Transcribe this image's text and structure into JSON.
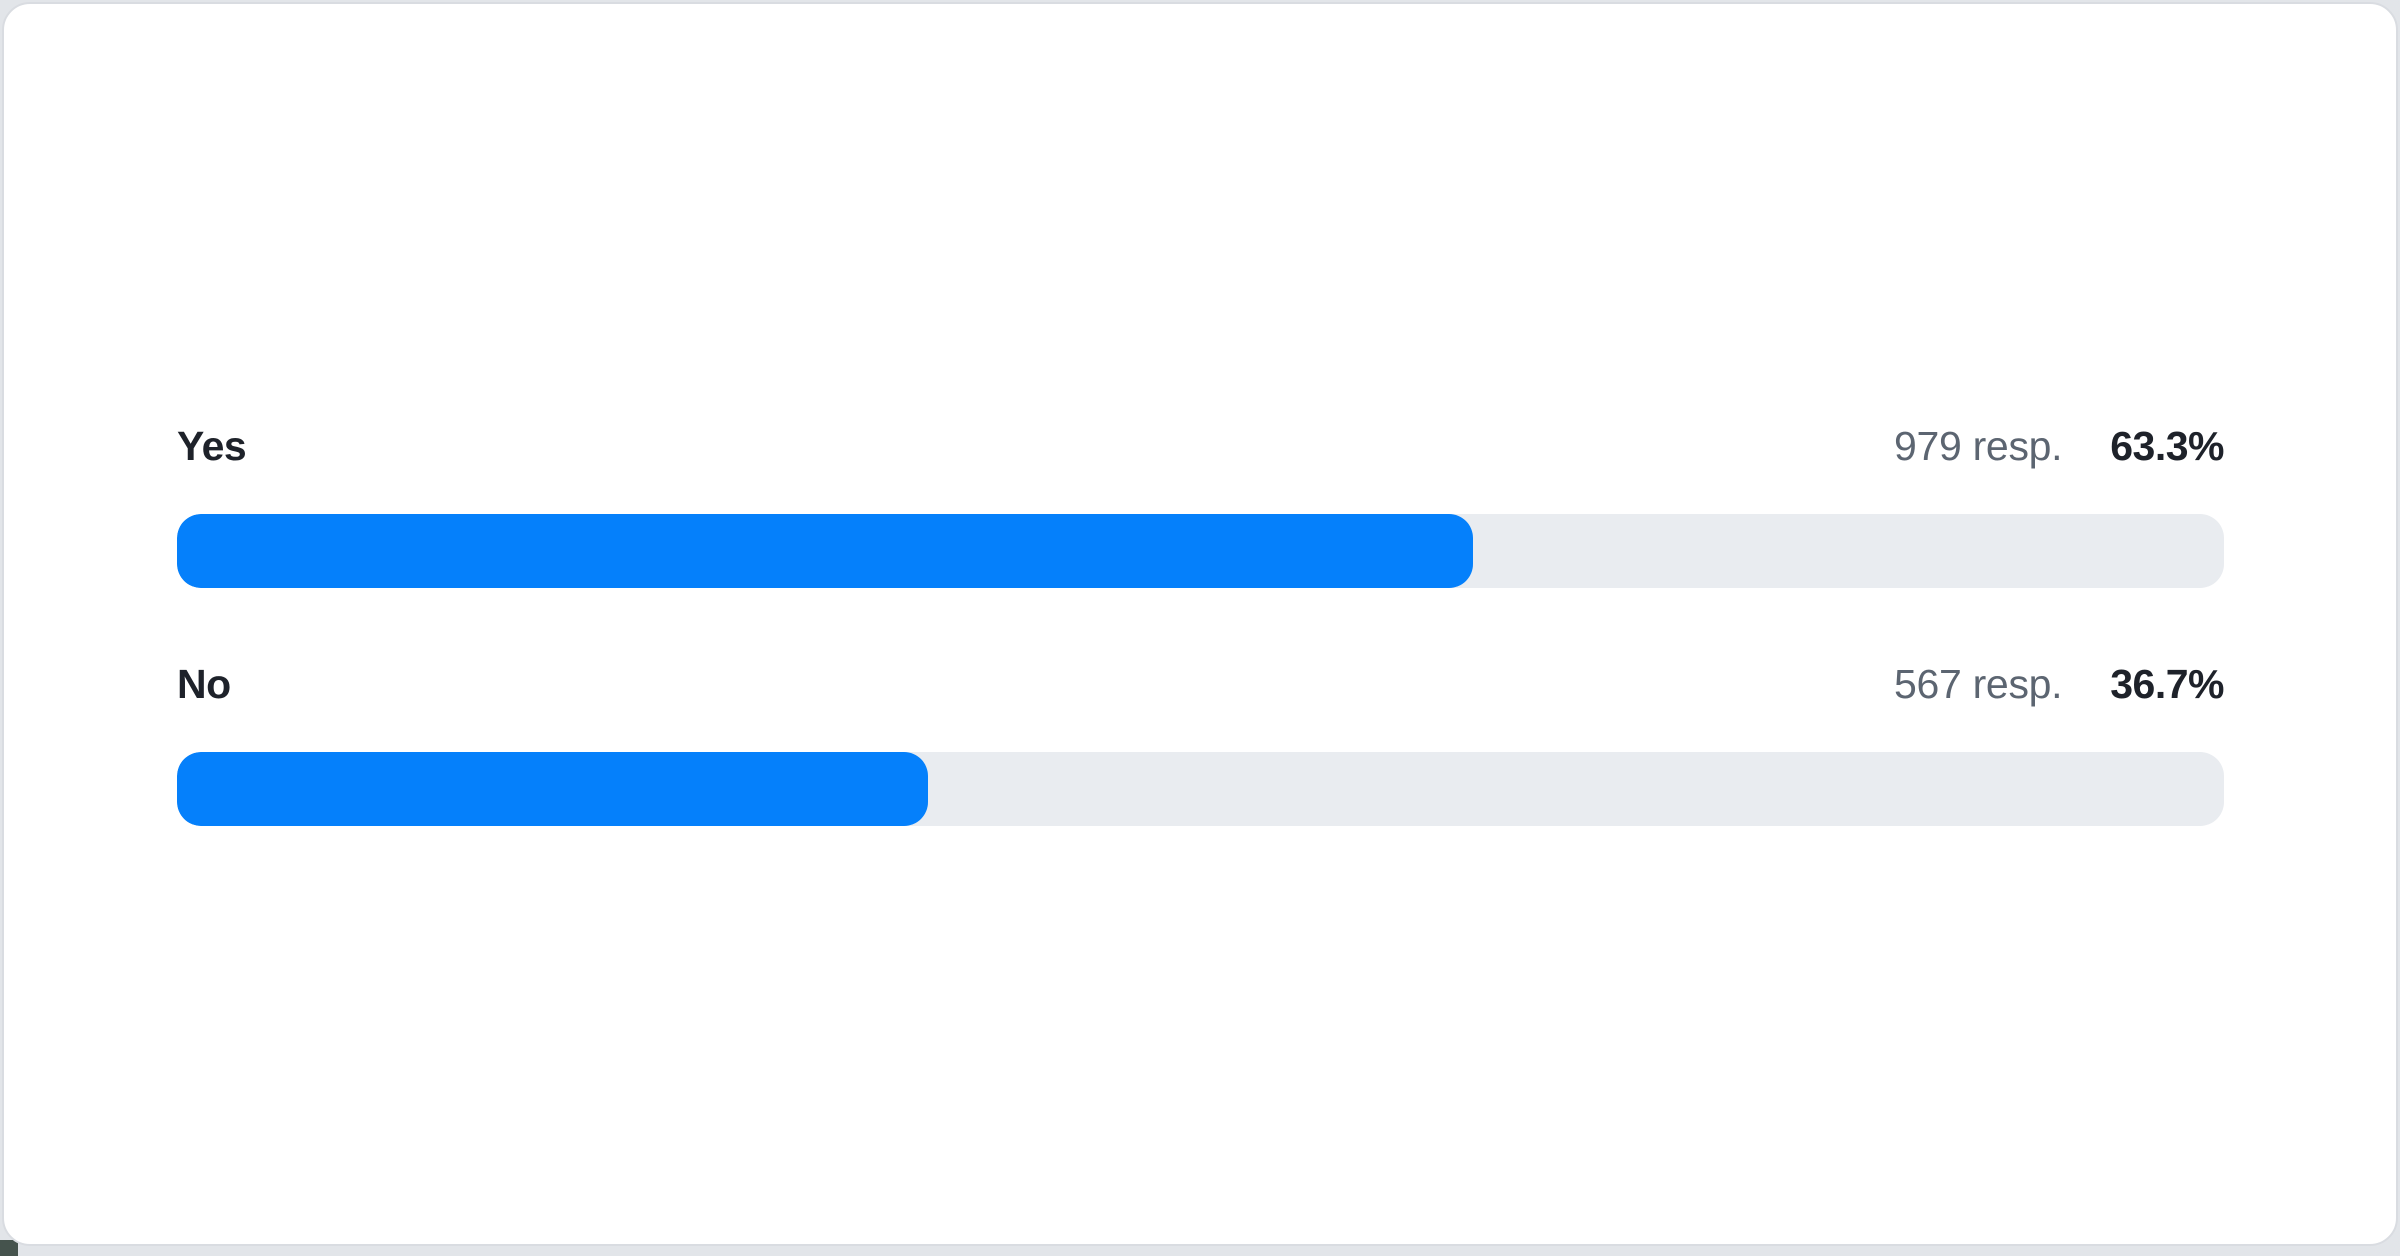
{
  "page": {
    "background_color": "#e2e5e9"
  },
  "card": {
    "background_color": "#ffffff",
    "border_color": "#d9dce1"
  },
  "colors": {
    "page_bg": "#e2e5e9",
    "card_bg": "#ffffff",
    "card_border": "#d9dce1",
    "bar_fill": "#0580fb",
    "bar_track": "#e9ecf0",
    "label_text": "#1e222a",
    "muted_text": "#5c6571",
    "corner_fragment": "#45534d"
  },
  "chart_data": {
    "type": "bar",
    "orientation": "horizontal",
    "title": "",
    "categories": [
      "Yes",
      "No"
    ],
    "series": [
      {
        "name": "responses",
        "values": [
          979,
          567
        ]
      },
      {
        "name": "percent",
        "values": [
          63.3,
          36.7
        ]
      }
    ],
    "count_labels": [
      "979 resp.",
      "567 resp."
    ],
    "value_labels": [
      "63.3%",
      "36.7%"
    ],
    "xlim": [
      0,
      100
    ],
    "grid": false,
    "legend": false
  },
  "results": {
    "rows": [
      {
        "label": "Yes",
        "responses": "979 resp.",
        "percent_label": "63.3%",
        "percent": 63.3
      },
      {
        "label": "No",
        "responses": "567 resp.",
        "percent_label": "36.7%",
        "percent": 36.7
      }
    ]
  }
}
